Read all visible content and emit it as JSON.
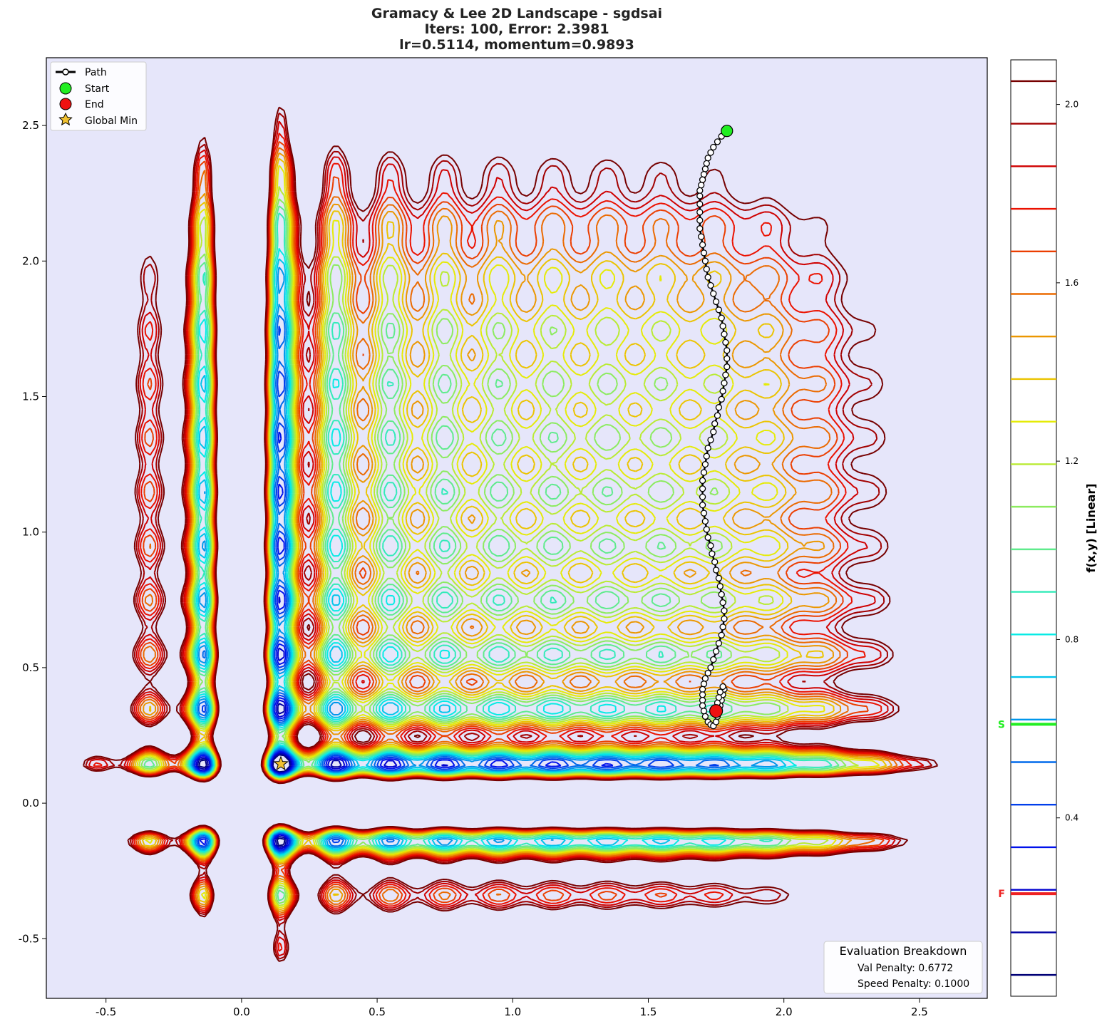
{
  "title_lines": [
    "Gramacy & Lee 2D Landscape - sgdsai",
    "Iters: 100, Error: 2.3981",
    "lr=0.5114, momentum=0.9893"
  ],
  "chart_data": {
    "type": "contour",
    "function": "Gramacy & Lee 2D",
    "xlim": [
      -0.72,
      2.75
    ],
    "ylim": [
      -0.72,
      2.75
    ],
    "x_ticks": [
      "-0.5",
      "0.0",
      "0.5",
      "1.0",
      "1.5",
      "2.0",
      "2.5"
    ],
    "y_ticks": [
      "-0.5",
      "0.0",
      "0.5",
      "1.0",
      "1.5",
      "2.0",
      "2.5"
    ],
    "colorbar": {
      "label": "f(x,y) [Linear]",
      "range": [
        0.0,
        2.1
      ],
      "ticks": [
        "0.4",
        "0.8",
        "1.2",
        "1.6",
        "2.0"
      ],
      "markers": [
        {
          "label": "S",
          "value": 0.61,
          "color": "#22ee22"
        },
        {
          "label": "F",
          "value": 0.23,
          "color": "#ee2222"
        }
      ]
    },
    "legend": {
      "placement": "upper-left",
      "entries": [
        {
          "label": "Path",
          "marker": "line-circle",
          "color": "#000000"
        },
        {
          "label": "Start",
          "marker": "circle",
          "color": "#22ee22"
        },
        {
          "label": "End",
          "marker": "circle",
          "color": "#ee1111"
        },
        {
          "label": "Global Min",
          "marker": "star",
          "color": "#f2c230"
        }
      ]
    },
    "start": {
      "x": 1.79,
      "y": 2.48
    },
    "end": {
      "x": 1.75,
      "y": 0.34
    },
    "global_min": {
      "x": 0.145,
      "y": 0.145
    },
    "path": [
      [
        1.79,
        2.48
      ],
      [
        1.77,
        2.46
      ],
      [
        1.755,
        2.44
      ],
      [
        1.74,
        2.42
      ],
      [
        1.73,
        2.4
      ],
      [
        1.72,
        2.38
      ],
      [
        1.715,
        2.36
      ],
      [
        1.71,
        2.34
      ],
      [
        1.705,
        2.32
      ],
      [
        1.7,
        2.3
      ],
      [
        1.695,
        2.28
      ],
      [
        1.69,
        2.26
      ],
      [
        1.69,
        2.24
      ],
      [
        1.69,
        2.21
      ],
      [
        1.69,
        2.18
      ],
      [
        1.69,
        2.15
      ],
      [
        1.69,
        2.12
      ],
      [
        1.695,
        2.09
      ],
      [
        1.7,
        2.06
      ],
      [
        1.705,
        2.03
      ],
      [
        1.71,
        2.0
      ],
      [
        1.715,
        1.97
      ],
      [
        1.72,
        1.94
      ],
      [
        1.73,
        1.91
      ],
      [
        1.74,
        1.88
      ],
      [
        1.75,
        1.85
      ],
      [
        1.76,
        1.82
      ],
      [
        1.77,
        1.79
      ],
      [
        1.775,
        1.76
      ],
      [
        1.78,
        1.73
      ],
      [
        1.785,
        1.7
      ],
      [
        1.79,
        1.67
      ],
      [
        1.79,
        1.64
      ],
      [
        1.79,
        1.61
      ],
      [
        1.785,
        1.58
      ],
      [
        1.78,
        1.55
      ],
      [
        1.775,
        1.52
      ],
      [
        1.77,
        1.49
      ],
      [
        1.76,
        1.46
      ],
      [
        1.755,
        1.43
      ],
      [
        1.745,
        1.4
      ],
      [
        1.74,
        1.37
      ],
      [
        1.73,
        1.34
      ],
      [
        1.72,
        1.31
      ],
      [
        1.715,
        1.28
      ],
      [
        1.71,
        1.25
      ],
      [
        1.705,
        1.22
      ],
      [
        1.7,
        1.19
      ],
      [
        1.7,
        1.16
      ],
      [
        1.7,
        1.13
      ],
      [
        1.7,
        1.1
      ],
      [
        1.705,
        1.07
      ],
      [
        1.71,
        1.04
      ],
      [
        1.715,
        1.01
      ],
      [
        1.72,
        0.98
      ],
      [
        1.73,
        0.95
      ],
      [
        1.735,
        0.92
      ],
      [
        1.745,
        0.89
      ],
      [
        1.75,
        0.86
      ],
      [
        1.76,
        0.83
      ],
      [
        1.765,
        0.8
      ],
      [
        1.77,
        0.77
      ],
      [
        1.775,
        0.74
      ],
      [
        1.78,
        0.71
      ],
      [
        1.78,
        0.68
      ],
      [
        1.775,
        0.65
      ],
      [
        1.77,
        0.62
      ],
      [
        1.76,
        0.59
      ],
      [
        1.75,
        0.56
      ],
      [
        1.74,
        0.53
      ],
      [
        1.73,
        0.5
      ],
      [
        1.72,
        0.48
      ],
      [
        1.71,
        0.46
      ],
      [
        1.705,
        0.44
      ],
      [
        1.7,
        0.42
      ],
      [
        1.7,
        0.4
      ],
      [
        1.7,
        0.38
      ],
      [
        1.7,
        0.36
      ],
      [
        1.705,
        0.34
      ],
      [
        1.71,
        0.32
      ],
      [
        1.72,
        0.3
      ],
      [
        1.73,
        0.29
      ],
      [
        1.74,
        0.285
      ],
      [
        1.75,
        0.3
      ],
      [
        1.755,
        0.32
      ],
      [
        1.76,
        0.34
      ],
      [
        1.765,
        0.36
      ],
      [
        1.77,
        0.38
      ],
      [
        1.775,
        0.4
      ],
      [
        1.78,
        0.42
      ],
      [
        1.775,
        0.43
      ],
      [
        1.765,
        0.41
      ],
      [
        1.76,
        0.39
      ],
      [
        1.755,
        0.37
      ],
      [
        1.75,
        0.34
      ]
    ]
  },
  "info_box": {
    "title": "Evaluation Breakdown",
    "lines": [
      "Val Penalty: 0.6772",
      "Speed Penalty: 0.1000"
    ]
  }
}
